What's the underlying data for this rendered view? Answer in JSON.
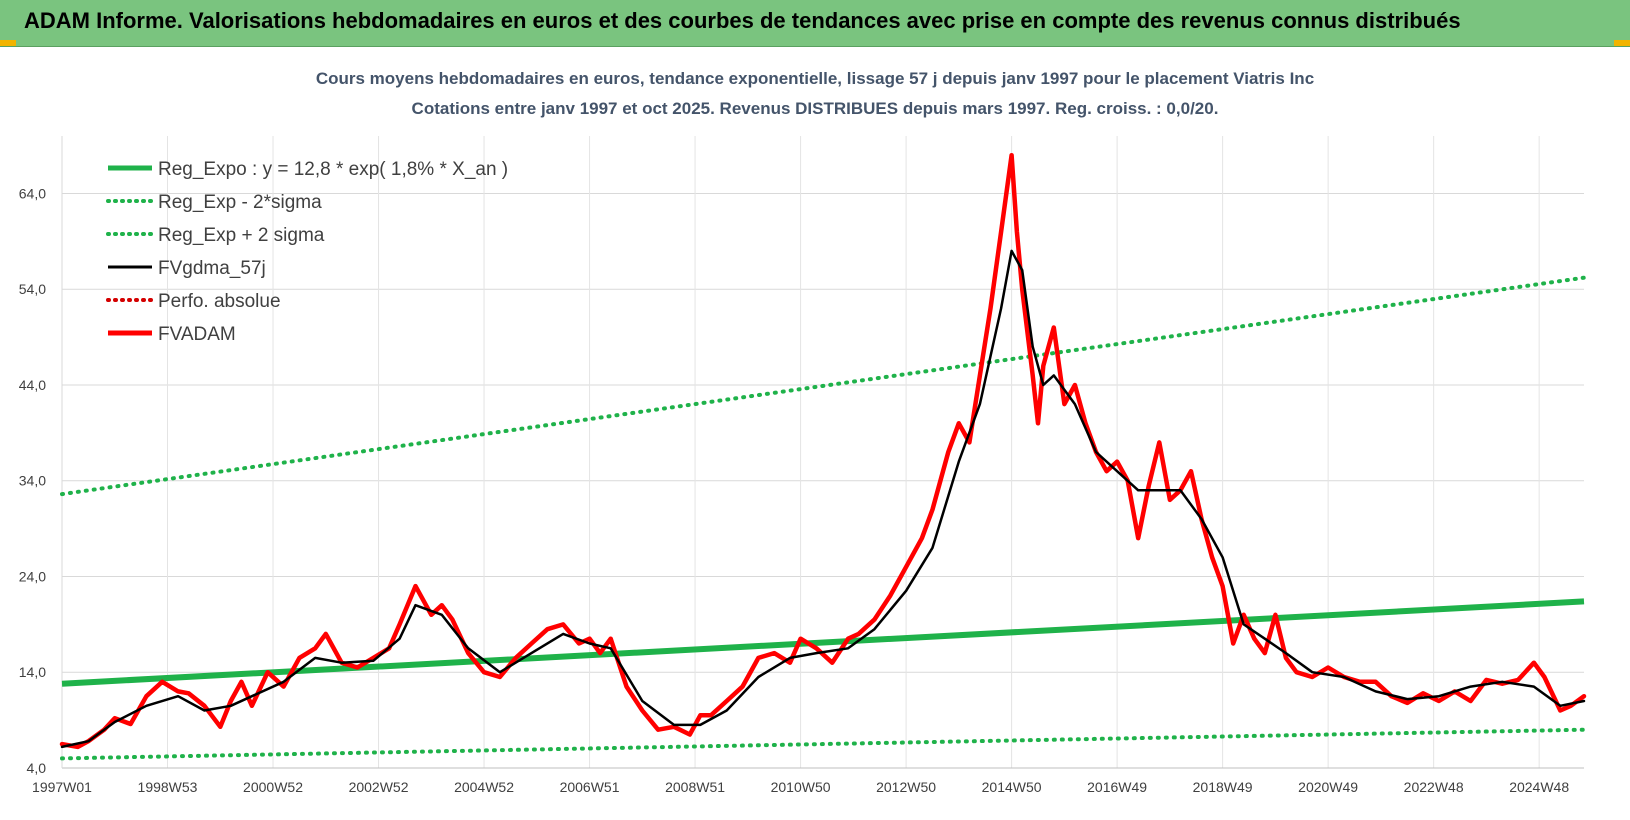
{
  "header": {
    "title": "ADAM Informe. Valorisations hebdomadaires en euros et des courbes de tendances avec prise en compte des revenus connus distribués"
  },
  "chart_data": {
    "type": "line",
    "title_line1": "Cours moyens hebdomadaires en euros, tendance exponentielle, lissage 57 j depuis janv 1997 pour le placement Viatris Inc",
    "title_line2": "Cotations entre janv 1997 et oct 2025. Revenus DISTRIBUES depuis mars 1997. Reg. croiss. : 0,0/20.",
    "ylim": [
      4,
      70
    ],
    "xlim": [
      1997.0,
      2025.85
    ],
    "y_ticks": [
      {
        "value": 4,
        "label": "4,0"
      },
      {
        "value": 14,
        "label": "14,0"
      },
      {
        "value": 24,
        "label": "24,0"
      },
      {
        "value": 34,
        "label": "34,0"
      },
      {
        "value": 44,
        "label": "44,0"
      },
      {
        "value": 54,
        "label": "54,0"
      },
      {
        "value": 64,
        "label": "64,0"
      }
    ],
    "x_ticks": [
      {
        "value": 1997.0,
        "label": "1997W01"
      },
      {
        "value": 1999.0,
        "label": "1998W53"
      },
      {
        "value": 2001.0,
        "label": "2000W52"
      },
      {
        "value": 2003.0,
        "label": "2002W52"
      },
      {
        "value": 2005.0,
        "label": "2004W52"
      },
      {
        "value": 2007.0,
        "label": "2006W51"
      },
      {
        "value": 2009.0,
        "label": "2008W51"
      },
      {
        "value": 2011.0,
        "label": "2010W50"
      },
      {
        "value": 2013.0,
        "label": "2012W50"
      },
      {
        "value": 2015.0,
        "label": "2014W50"
      },
      {
        "value": 2017.0,
        "label": "2016W49"
      },
      {
        "value": 2019.0,
        "label": "2018W49"
      },
      {
        "value": 2021.0,
        "label": "2020W49"
      },
      {
        "value": 2023.0,
        "label": "2022W48"
      },
      {
        "value": 2025.0,
        "label": "2024W48"
      }
    ],
    "legend": [
      {
        "key": "reg",
        "label": "Reg_Expo : y = 12,8 * exp( 1,8% *  X_an )",
        "color": "#1fb24a",
        "style": "solid"
      },
      {
        "key": "low",
        "label": "Reg_Exp - 2*sigma",
        "color": "#1fb24a",
        "style": "dotted"
      },
      {
        "key": "high",
        "label": "Reg_Exp + 2 sigma",
        "color": "#1fb24a",
        "style": "dotted"
      },
      {
        "key": "smooth",
        "label": "FVgdma_57j",
        "color": "#000000",
        "style": "solid"
      },
      {
        "key": "perf",
        "label": "Perfo. absolue",
        "color": "#d40000",
        "style": "dotted"
      },
      {
        "key": "fvadam",
        "label": "FVADAM",
        "color": "#ff0000",
        "style": "solid"
      }
    ],
    "series": [
      {
        "name": "Reg_Expo",
        "x": [
          1997.0,
          2025.85
        ],
        "values": [
          12.8,
          21.4
        ]
      },
      {
        "name": "Reg_Exp - 2*sigma",
        "x": [
          1997.0,
          2025.85
        ],
        "values": [
          5.0,
          8.0
        ]
      },
      {
        "name": "Reg_Exp + 2 sigma",
        "x": [
          1997.0,
          2025.85
        ],
        "values": [
          32.6,
          55.2
        ]
      },
      {
        "name": "FVADAM",
        "x": [
          1997.0,
          1997.3,
          1997.5,
          1997.8,
          1998.0,
          1998.3,
          1998.6,
          1998.9,
          1999.2,
          1999.4,
          1999.7,
          2000.0,
          2000.2,
          2000.4,
          2000.6,
          2000.9,
          2001.2,
          2001.5,
          2001.8,
          2002.0,
          2002.3,
          2002.6,
          2002.9,
          2003.2,
          2003.4,
          2003.7,
          2004.0,
          2004.2,
          2004.4,
          2004.7,
          2005.0,
          2005.3,
          2005.6,
          2005.9,
          2006.2,
          2006.5,
          2006.8,
          2007.0,
          2007.2,
          2007.4,
          2007.7,
          2008.0,
          2008.3,
          2008.6,
          2008.9,
          2009.1,
          2009.3,
          2009.6,
          2009.9,
          2010.2,
          2010.5,
          2010.8,
          2011.0,
          2011.3,
          2011.6,
          2011.9,
          2012.1,
          2012.4,
          2012.7,
          2013.0,
          2013.3,
          2013.5,
          2013.8,
          2014.0,
          2014.2,
          2014.4,
          2014.6,
          2014.8,
          2015.0,
          2015.1,
          2015.2,
          2015.4,
          2015.5,
          2015.6,
          2015.8,
          2016.0,
          2016.2,
          2016.4,
          2016.6,
          2016.8,
          2017.0,
          2017.2,
          2017.4,
          2017.6,
          2017.8,
          2018.0,
          2018.2,
          2018.4,
          2018.6,
          2018.8,
          2019.0,
          2019.2,
          2019.4,
          2019.6,
          2019.8,
          2020.0,
          2020.2,
          2020.4,
          2020.7,
          2021.0,
          2021.3,
          2021.6,
          2021.9,
          2022.2,
          2022.5,
          2022.8,
          2023.1,
          2023.4,
          2023.7,
          2024.0,
          2024.3,
          2024.6,
          2024.9,
          2025.1,
          2025.4,
          2025.6,
          2025.85
        ],
        "values": [
          6.5,
          6.2,
          6.8,
          8.0,
          9.2,
          8.6,
          11.5,
          13.0,
          12.0,
          11.8,
          10.5,
          8.3,
          11.0,
          13.0,
          10.5,
          14.0,
          12.5,
          15.5,
          16.5,
          18.0,
          15.0,
          14.5,
          15.5,
          16.5,
          19.0,
          23.0,
          20.0,
          21.0,
          19.5,
          16.0,
          14.0,
          13.5,
          15.5,
          17.0,
          18.5,
          19.0,
          17.0,
          17.5,
          16.0,
          17.5,
          12.5,
          10.0,
          8.0,
          8.3,
          7.5,
          9.5,
          9.5,
          11.0,
          12.5,
          15.5,
          16.0,
          15.0,
          17.5,
          16.5,
          15.0,
          17.5,
          18.0,
          19.5,
          22.0,
          25.0,
          28.0,
          31.0,
          37.0,
          40.0,
          38.0,
          45.0,
          52.0,
          60.0,
          68.0,
          60.0,
          54.0,
          45.0,
          40.0,
          46.0,
          50.0,
          42.0,
          44.0,
          40.0,
          37.0,
          35.0,
          36.0,
          34.0,
          28.0,
          33.5,
          38.0,
          32.0,
          33.0,
          35.0,
          30.0,
          26.0,
          23.0,
          17.0,
          20.0,
          17.5,
          16.0,
          20.0,
          15.5,
          14.0,
          13.5,
          14.5,
          13.5,
          13.0,
          13.0,
          11.5,
          10.8,
          11.8,
          11.0,
          12.0,
          11.0,
          13.2,
          12.8,
          13.2,
          15.0,
          13.5,
          10.0,
          10.5,
          11.5
        ]
      },
      {
        "name": "FVgdma_57j",
        "x": [
          1997.0,
          1997.5,
          1998.0,
          1998.6,
          1999.2,
          1999.7,
          2000.2,
          2000.6,
          2001.2,
          2001.8,
          2002.3,
          2002.9,
          2003.4,
          2003.7,
          2004.2,
          2004.7,
          2005.3,
          2005.9,
          2006.5,
          2007.0,
          2007.4,
          2008.0,
          2008.6,
          2009.1,
          2009.6,
          2010.2,
          2010.8,
          2011.3,
          2011.9,
          2012.4,
          2013.0,
          2013.5,
          2014.0,
          2014.4,
          2014.8,
          2015.0,
          2015.2,
          2015.4,
          2015.6,
          2015.8,
          2016.2,
          2016.6,
          2017.0,
          2017.4,
          2017.8,
          2018.2,
          2018.6,
          2019.0,
          2019.4,
          2019.8,
          2020.2,
          2020.7,
          2021.3,
          2021.9,
          2022.5,
          2023.1,
          2023.7,
          2024.3,
          2024.9,
          2025.4,
          2025.85
        ],
        "values": [
          6.2,
          6.8,
          8.8,
          10.5,
          11.5,
          10.0,
          10.5,
          11.5,
          13.0,
          15.5,
          15.0,
          15.2,
          17.5,
          21.0,
          20.0,
          16.5,
          14.0,
          16.0,
          18.0,
          17.0,
          16.5,
          11.0,
          8.5,
          8.5,
          10.0,
          13.5,
          15.5,
          16.0,
          16.5,
          18.5,
          22.5,
          27.0,
          36.0,
          42.0,
          52.0,
          58.0,
          56.0,
          48.0,
          44.0,
          45.0,
          42.0,
          37.0,
          35.0,
          33.0,
          33.0,
          33.0,
          30.0,
          26.0,
          19.0,
          17.5,
          16.0,
          14.0,
          13.5,
          12.0,
          11.2,
          11.5,
          12.5,
          13.0,
          12.5,
          10.5,
          11.0
        ]
      }
    ]
  }
}
